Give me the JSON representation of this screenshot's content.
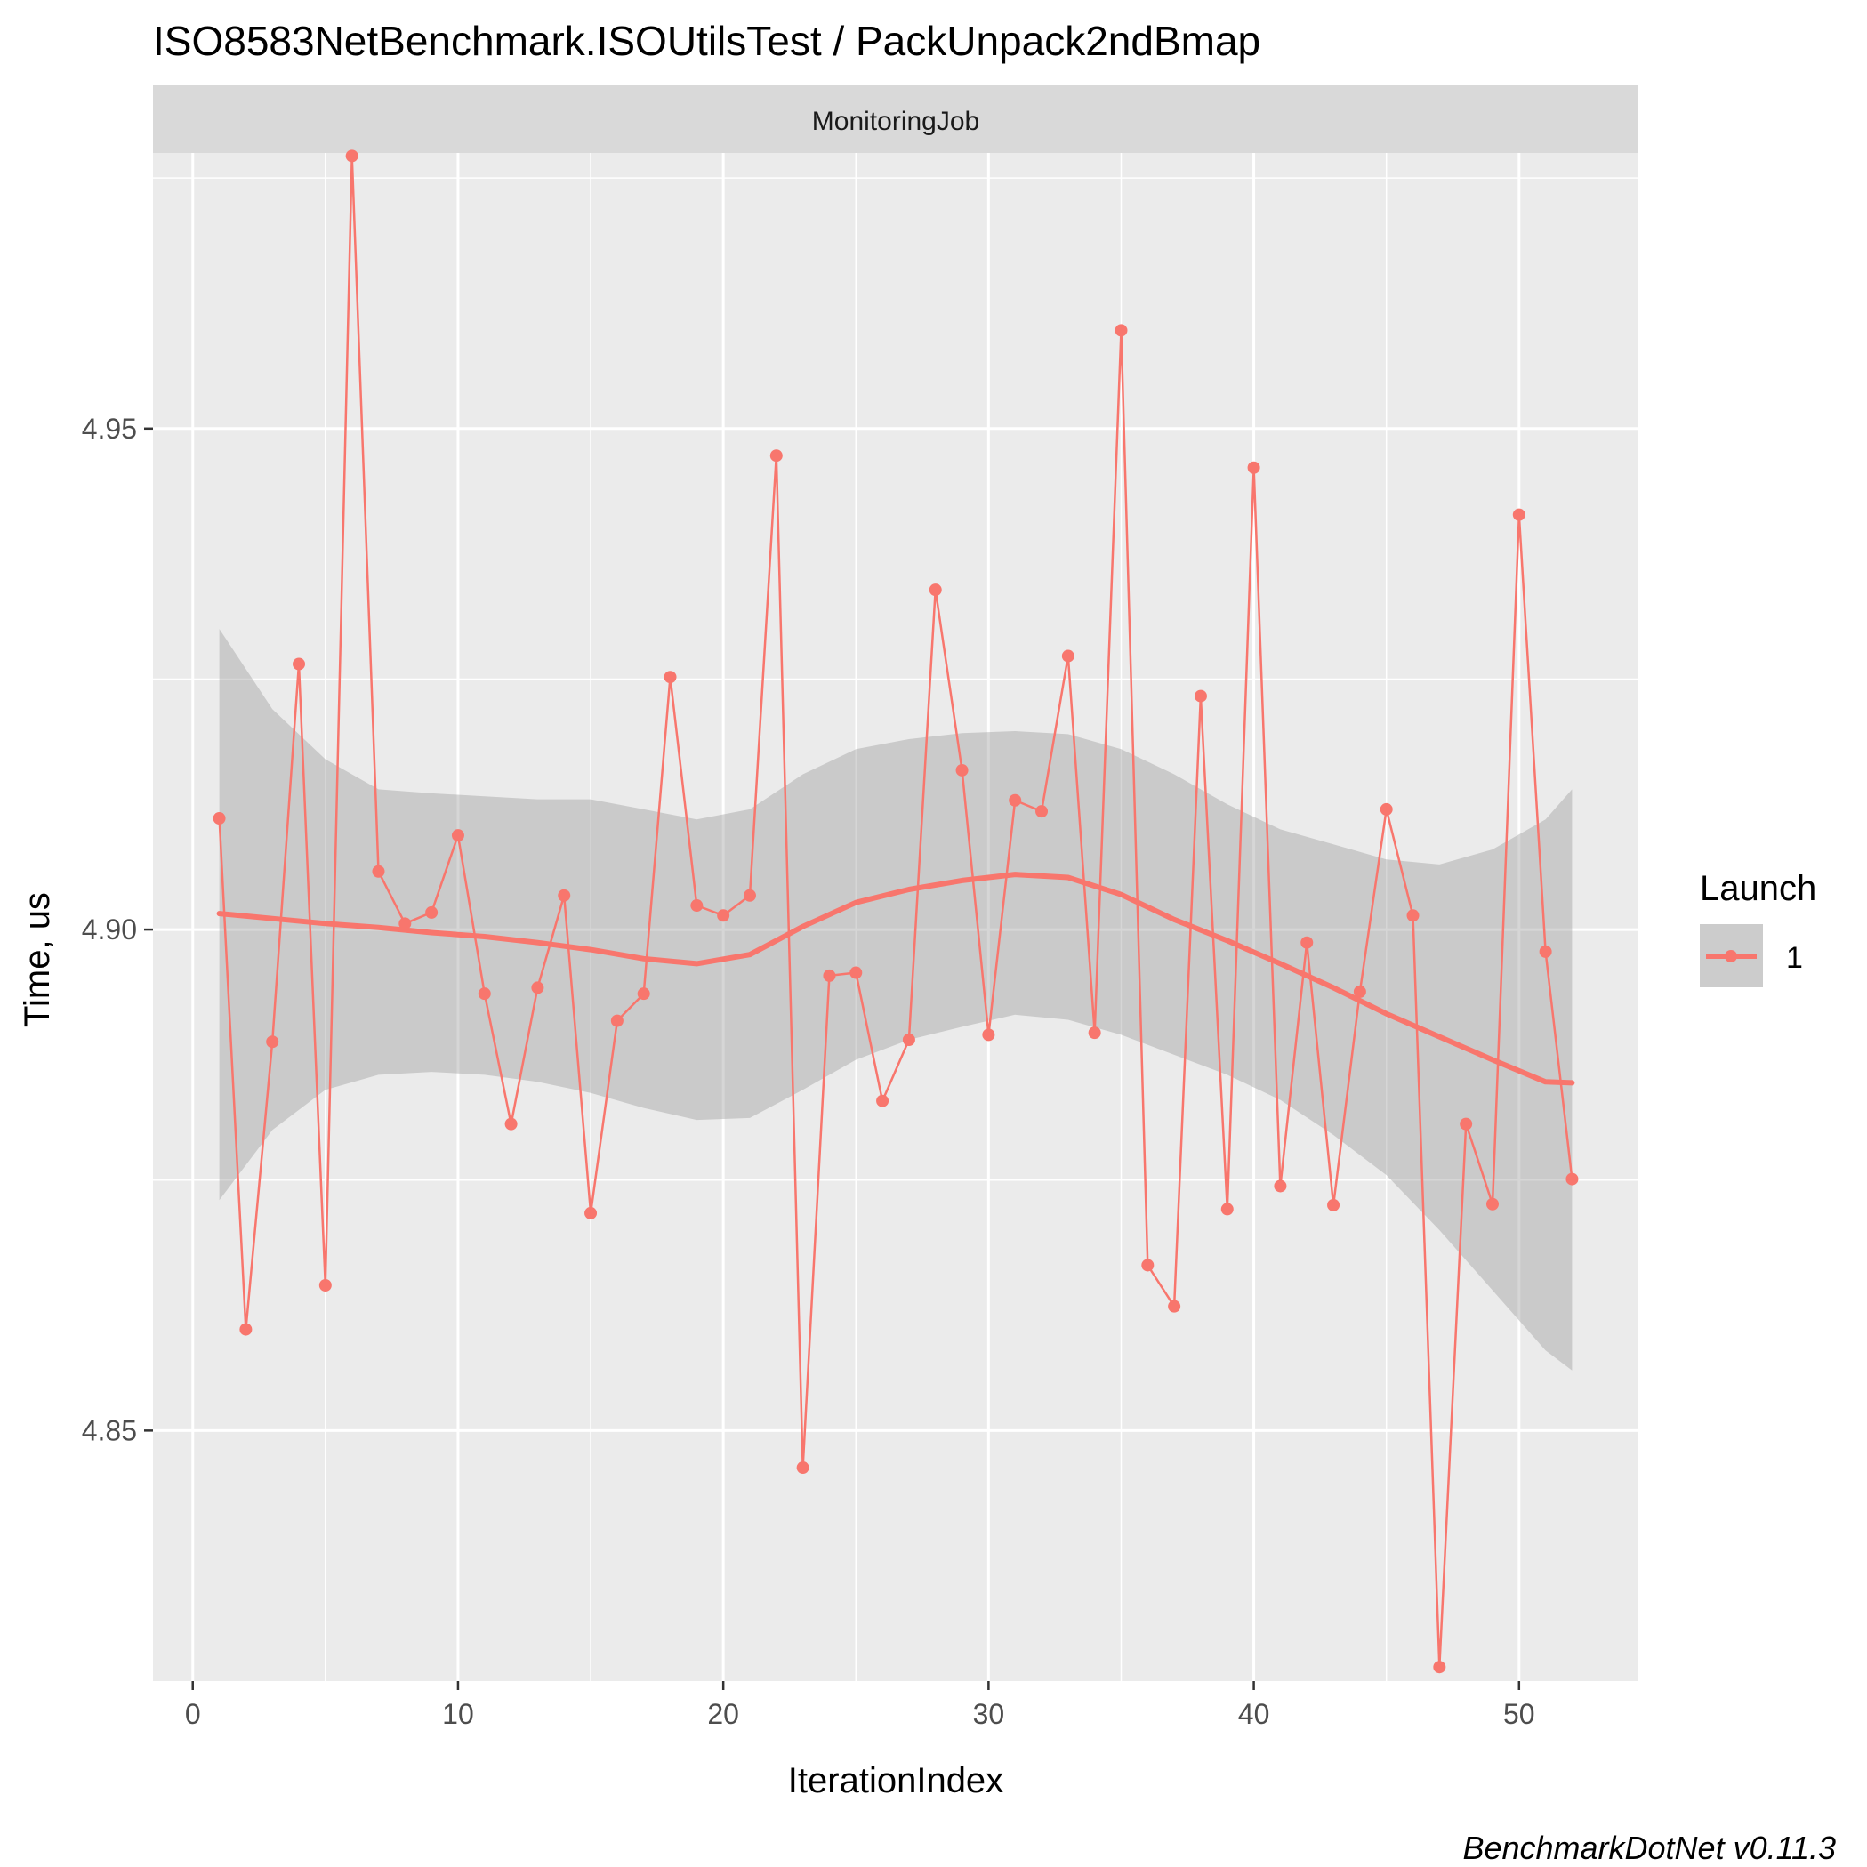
{
  "chart_data": {
    "type": "line",
    "title": "ISO8583NetBenchmark.ISOUtilsTest / PackUnpack2ndBmap",
    "facet_label": "MonitoringJob",
    "xlabel": "IterationIndex",
    "ylabel": "Time, us",
    "xlim": [
      -1.5,
      54.5
    ],
    "ylim": [
      4.825,
      4.9775
    ],
    "x_ticks": [
      0,
      10,
      20,
      30,
      40,
      50
    ],
    "y_ticks": [
      4.85,
      4.9,
      4.95
    ],
    "y_tick_labels": [
      "4.85",
      "4.90",
      "4.95"
    ],
    "grid": true,
    "legend": {
      "title": "Launch",
      "placement": "right",
      "entries": [
        "1"
      ]
    },
    "colors": {
      "series": "#F8766D",
      "band": "#999999",
      "panel": "#EBEBEB",
      "strip": "#D9D9D9",
      "grid": "#FFFFFF"
    },
    "series": [
      {
        "name": "1",
        "x": [
          1,
          2,
          3,
          4,
          5,
          6,
          7,
          8,
          9,
          10,
          11,
          12,
          13,
          14,
          15,
          16,
          17,
          18,
          19,
          20,
          21,
          22,
          23,
          24,
          25,
          26,
          27,
          28,
          29,
          30,
          31,
          32,
          33,
          34,
          35,
          36,
          37,
          38,
          39,
          40,
          41,
          42,
          43,
          44,
          45,
          46,
          47,
          48,
          49,
          50,
          51,
          52
        ],
        "y": [
          4.9111,
          4.8601,
          4.8888,
          4.9265,
          4.8645,
          4.9772,
          4.9058,
          4.9006,
          4.9017,
          4.9094,
          4.8936,
          4.8806,
          4.8942,
          4.9034,
          4.8717,
          4.8909,
          4.8936,
          4.9252,
          4.9024,
          4.9014,
          4.9034,
          4.9473,
          4.8463,
          4.8954,
          4.8957,
          4.8829,
          4.889,
          4.9339,
          4.9159,
          4.8895,
          4.9129,
          4.9118,
          4.9273,
          4.8897,
          4.9598,
          4.8665,
          4.8624,
          4.9233,
          4.8721,
          4.9461,
          4.8744,
          4.8987,
          4.8725,
          4.8938,
          4.912,
          4.9014,
          4.8264,
          4.8806,
          4.8726,
          4.9414,
          4.8978,
          4.8751
        ]
      }
    ],
    "smooth": {
      "x": [
        1,
        3,
        5,
        7,
        9,
        11,
        13,
        15,
        17,
        19,
        21,
        23,
        25,
        27,
        29,
        31,
        33,
        35,
        37,
        39,
        41,
        43,
        45,
        47,
        49,
        51,
        52
      ],
      "y": [
        4.9016,
        4.9011,
        4.9006,
        4.9002,
        4.8997,
        4.8993,
        4.8987,
        4.898,
        4.8971,
        4.8966,
        4.8975,
        4.9003,
        4.9027,
        4.904,
        4.9049,
        4.9055,
        4.9052,
        4.9035,
        4.901,
        4.8989,
        4.8966,
        4.8942,
        4.8916,
        4.8893,
        4.887,
        4.8848,
        4.8847
      ],
      "lower": [
        4.873,
        4.88,
        4.884,
        4.8855,
        4.8858,
        4.8855,
        4.8848,
        4.8837,
        4.8822,
        4.881,
        4.8812,
        4.884,
        4.887,
        4.889,
        4.8903,
        4.8915,
        4.891,
        4.8895,
        4.8875,
        4.8855,
        4.883,
        4.8795,
        4.8755,
        4.87,
        4.864,
        4.858,
        4.856
      ],
      "upper": [
        4.93,
        4.922,
        4.917,
        4.914,
        4.9136,
        4.9133,
        4.913,
        4.913,
        4.912,
        4.911,
        4.912,
        4.9155,
        4.918,
        4.919,
        4.9196,
        4.9198,
        4.9195,
        4.918,
        4.9155,
        4.9125,
        4.91,
        4.9085,
        4.907,
        4.9065,
        4.908,
        4.911,
        4.914
      ]
    },
    "caption": "BenchmarkDotNet v0.11.3"
  }
}
